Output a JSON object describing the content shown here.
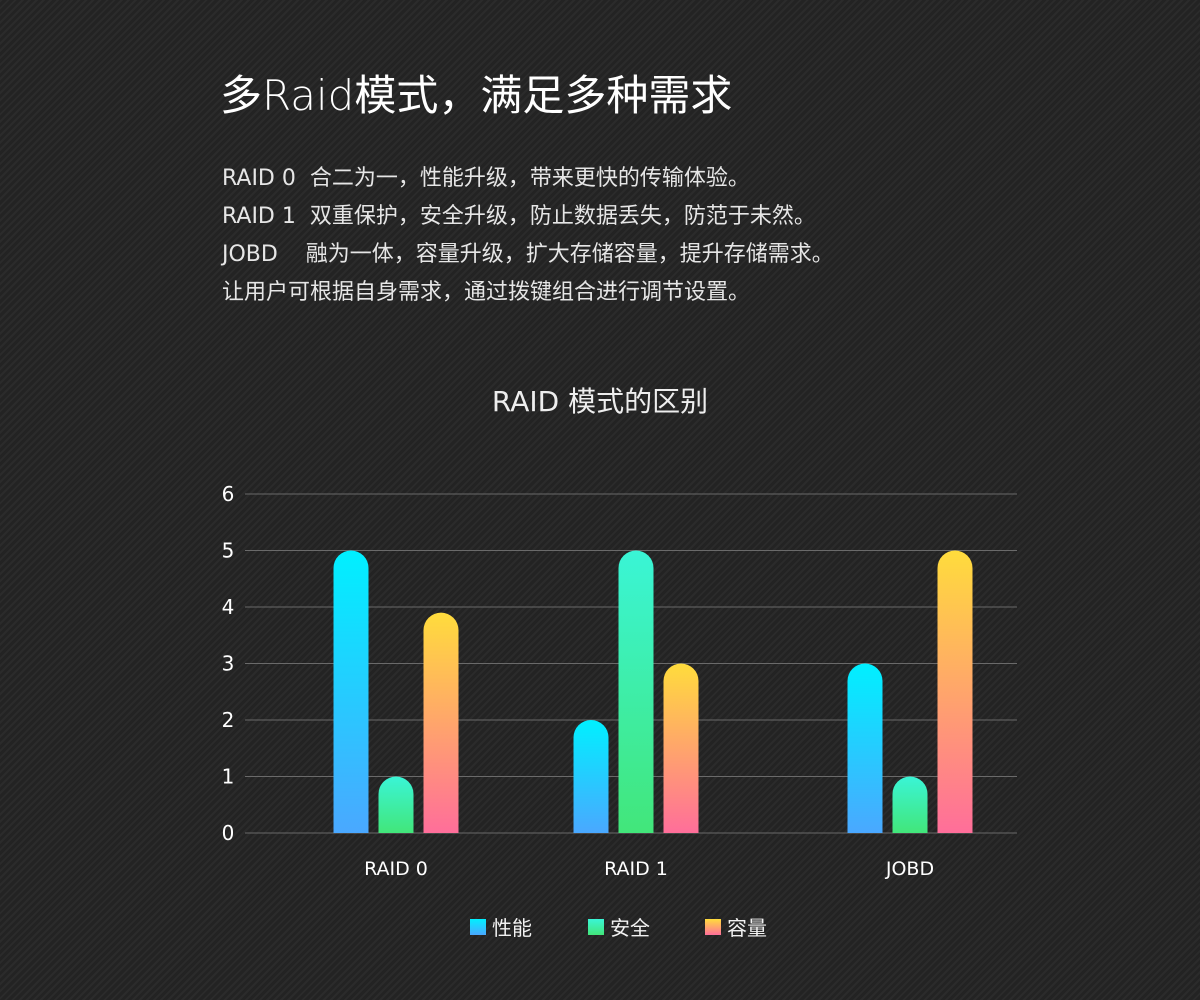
{
  "header": {
    "title": "多Raid模式，满足多种需求"
  },
  "description": [
    "RAID 0  合二为一，性能升级，带来更快的传输体验。",
    "RAID 1  双重保护，安全升级，防止数据丢失，防范于未然。",
    "JOBD    融为一体，容量升级，扩大存储容量，提升存储需求。",
    "让用户可根据自身需求，通过拨键组合进行调节设置。"
  ],
  "chart_data": {
    "type": "bar",
    "title": "RAID 模式的区别",
    "categories": [
      "RAID 0",
      "RAID 1",
      "JOBD"
    ],
    "yticks": [
      "0",
      "1",
      "2",
      "3",
      "4",
      "5",
      "6"
    ],
    "ylim": [
      0,
      6
    ],
    "grid": true,
    "legend_position": "bottom",
    "series": [
      {
        "name": "性能",
        "values": [
          5,
          2,
          3
        ],
        "colors": [
          "#00f0ff",
          "#4aa8ff"
        ]
      },
      {
        "name": "安全",
        "values": [
          1,
          5,
          1
        ],
        "colors": [
          "#3af5d6",
          "#42e67a"
        ]
      },
      {
        "name": "容量",
        "values": [
          3.9,
          3,
          5
        ],
        "colors": [
          "#ffdc3c",
          "#ff6e9a"
        ]
      }
    ]
  }
}
